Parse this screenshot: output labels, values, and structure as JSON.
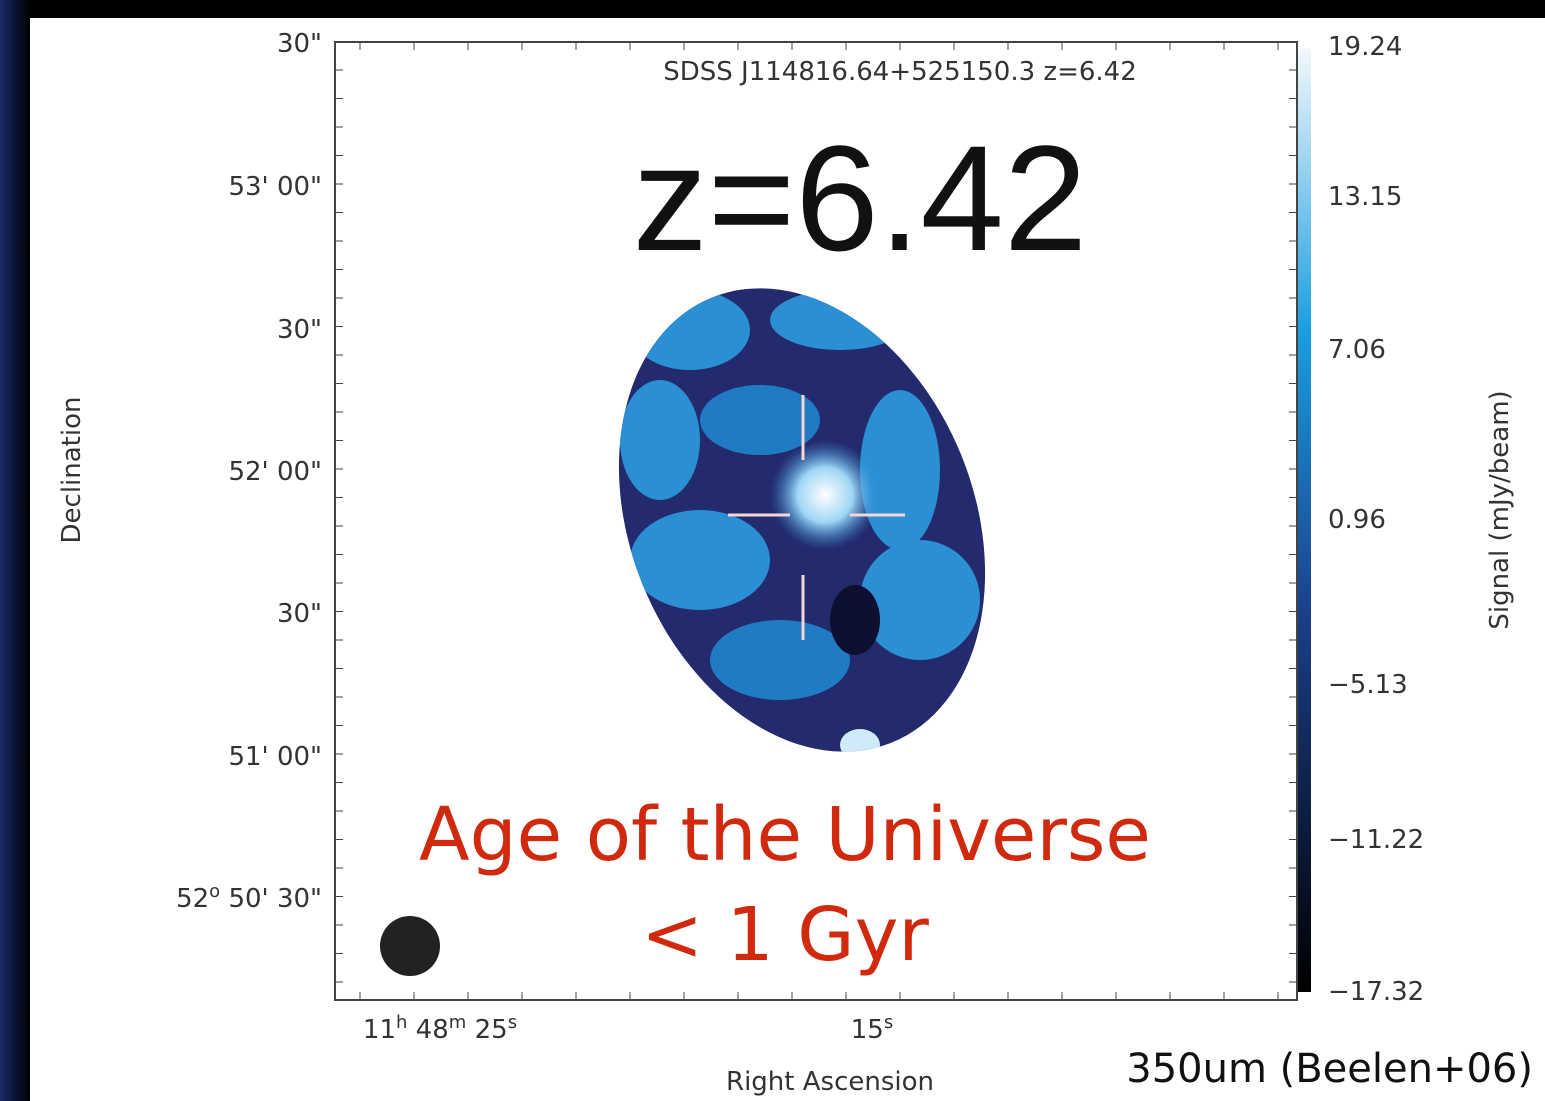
{
  "plot": {
    "source_title": "SDSS J114816.64+525150.3 z=6.42",
    "dec_labels": [
      [
        "30\""
      ],
      [
        "53' 00\""
      ],
      [
        "30\""
      ],
      [
        "52' 00\""
      ],
      [
        "30\""
      ],
      [
        "51' 00\""
      ],
      [
        "52",
        "o",
        " 50' 30\""
      ]
    ],
    "ra_labels": [
      [
        "11",
        "h",
        " 48",
        "m",
        " 25",
        "s"
      ],
      [
        "15",
        "s"
      ]
    ],
    "x_axis_label": "Right Ascension",
    "y_axis_label": "Declination",
    "colorbar_labels": [
      "19.24",
      "13.15",
      "7.06",
      "0.96",
      "−5.13",
      "−11.22",
      "−17.32"
    ],
    "colorbar_title": "Signal (mJy/beam)"
  },
  "overlay": {
    "redshift": "z=6.42",
    "age_line_1": "Age of the Universe",
    "age_line_2": "< 1 Gyr",
    "credit": "350um (Beelen+06)"
  }
}
